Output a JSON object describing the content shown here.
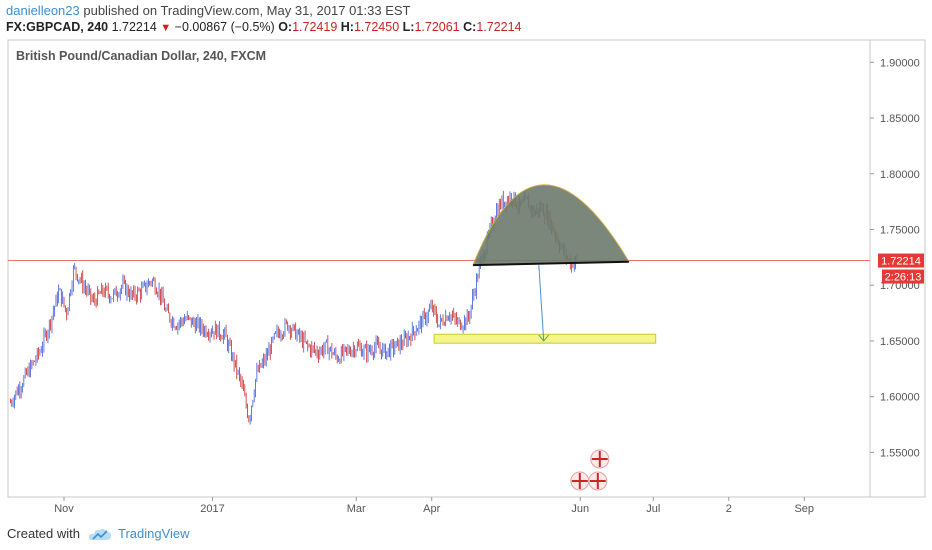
{
  "header": {
    "username": "danielleon23",
    "published_text": "published on TradingView.com, May 31, 2017 01:33 EST",
    "symbol": "FX:GBPCAD, 240",
    "last_price": "1.72214",
    "change_arrow": "▼",
    "change": "−0.00867 (−0.5%)",
    "open_label": "O:",
    "open_value": "1.72419",
    "high_label": "H:",
    "high_value": "1.72450",
    "low_label": "L:",
    "low_value": "1.72061",
    "close_label": "C:",
    "close_value": "1.72214"
  },
  "footer": {
    "created_with": "Created with",
    "brand": "TradingView"
  },
  "colors": {
    "bull": "#3b5bdb",
    "bear": "#c62828",
    "price_line": "#e57373",
    "dome_fill": "#6b7a6b",
    "dome_stroke": "#c9a93a",
    "target_fill": "#f5f58a",
    "arrow": "#4a90d9",
    "axis_text": "#555555"
  },
  "chart_data": {
    "type": "candlestick",
    "title": "British Pound/Canadian Dollar, 240, FXCM",
    "y_axis": {
      "ticks": [
        "1.90000",
        "1.85000",
        "1.80000",
        "1.75000",
        "1.70000",
        "1.65000",
        "1.60000",
        "1.55000"
      ],
      "tick_values": [
        1.9,
        1.85,
        1.8,
        1.75,
        1.7,
        1.65,
        1.6,
        1.55
      ],
      "range": [
        1.51,
        1.92
      ]
    },
    "x_axis": {
      "ticks": [
        "Nov",
        "2017",
        "Mar",
        "Apr",
        "Jun",
        "Jul",
        "2",
        "Sep"
      ],
      "tick_dates": [
        "2016-11-01",
        "2017-01-01",
        "2017-03-01",
        "2017-04-01",
        "2017-06-01",
        "2017-07-01",
        "2017-08-01",
        "2017-09-01"
      ],
      "range": [
        "2016-10-09",
        "2017-09-28"
      ]
    },
    "price_label": "1.72214",
    "countdown_label": "2:26:13",
    "last_value": 1.72214,
    "price_path": [
      [
        "2016-10-10",
        1.595
      ],
      [
        "2016-10-14",
        1.61
      ],
      [
        "2016-10-18",
        1.625
      ],
      [
        "2016-10-22",
        1.64
      ],
      [
        "2016-10-26",
        1.665
      ],
      [
        "2016-10-30",
        1.695
      ],
      [
        "2016-11-02",
        1.675
      ],
      [
        "2016-11-05",
        1.715
      ],
      [
        "2016-11-09",
        1.7
      ],
      [
        "2016-11-13",
        1.685
      ],
      [
        "2016-11-17",
        1.695
      ],
      [
        "2016-11-21",
        1.69
      ],
      [
        "2016-11-25",
        1.7
      ],
      [
        "2016-11-29",
        1.69
      ],
      [
        "2016-12-03",
        1.695
      ],
      [
        "2016-12-07",
        1.705
      ],
      [
        "2016-12-10",
        1.695
      ],
      [
        "2016-12-13",
        1.675
      ],
      [
        "2016-12-17",
        1.665
      ],
      [
        "2016-12-21",
        1.67
      ],
      [
        "2016-12-25",
        1.665
      ],
      [
        "2016-12-29",
        1.66
      ],
      [
        "2017-01-02",
        1.66
      ],
      [
        "2017-01-06",
        1.655
      ],
      [
        "2017-01-10",
        1.63
      ],
      [
        "2017-01-13",
        1.61
      ],
      [
        "2017-01-16",
        1.58
      ],
      [
        "2017-01-19",
        1.62
      ],
      [
        "2017-01-23",
        1.635
      ],
      [
        "2017-01-27",
        1.655
      ],
      [
        "2017-02-01",
        1.665
      ],
      [
        "2017-02-05",
        1.655
      ],
      [
        "2017-02-09",
        1.645
      ],
      [
        "2017-02-13",
        1.64
      ],
      [
        "2017-02-17",
        1.645
      ],
      [
        "2017-02-21",
        1.635
      ],
      [
        "2017-02-25",
        1.64
      ],
      [
        "2017-03-01",
        1.645
      ],
      [
        "2017-03-05",
        1.64
      ],
      [
        "2017-03-09",
        1.645
      ],
      [
        "2017-03-13",
        1.64
      ],
      [
        "2017-03-17",
        1.645
      ],
      [
        "2017-03-21",
        1.65
      ],
      [
        "2017-03-25",
        1.66
      ],
      [
        "2017-03-29",
        1.67
      ],
      [
        "2017-04-01",
        1.68
      ],
      [
        "2017-04-04",
        1.665
      ],
      [
        "2017-04-08",
        1.675
      ],
      [
        "2017-04-12",
        1.665
      ],
      [
        "2017-04-16",
        1.67
      ],
      [
        "2017-04-19",
        1.7
      ],
      [
        "2017-04-21",
        1.72
      ],
      [
        "2017-04-24",
        1.74
      ],
      [
        "2017-04-27",
        1.765
      ],
      [
        "2017-04-30",
        1.775
      ],
      [
        "2017-05-04",
        1.78
      ],
      [
        "2017-05-07",
        1.77
      ],
      [
        "2017-05-10",
        1.775
      ],
      [
        "2017-05-13",
        1.765
      ],
      [
        "2017-05-16",
        1.77
      ],
      [
        "2017-05-19",
        1.76
      ],
      [
        "2017-05-22",
        1.745
      ],
      [
        "2017-05-25",
        1.73
      ],
      [
        "2017-05-28",
        1.72
      ],
      [
        "2017-05-31",
        1.72214
      ]
    ],
    "annotations": {
      "neckline": {
        "start": [
          "2017-04-18",
          1.718
        ],
        "end": [
          "2017-06-21",
          1.721
        ]
      },
      "dome": {
        "start": [
          "2017-04-18",
          1.718
        ],
        "peak": [
          "2017-05-14",
          1.79
        ],
        "end": [
          "2017-06-21",
          1.721
        ]
      },
      "target_box": {
        "start": [
          "2017-04-02",
          1.656
        ],
        "end": [
          "2017-07-02",
          1.648
        ]
      },
      "arrow": {
        "from": [
          "2017-05-15",
          1.718
        ],
        "to": [
          "2017-05-17",
          1.65
        ]
      }
    }
  }
}
